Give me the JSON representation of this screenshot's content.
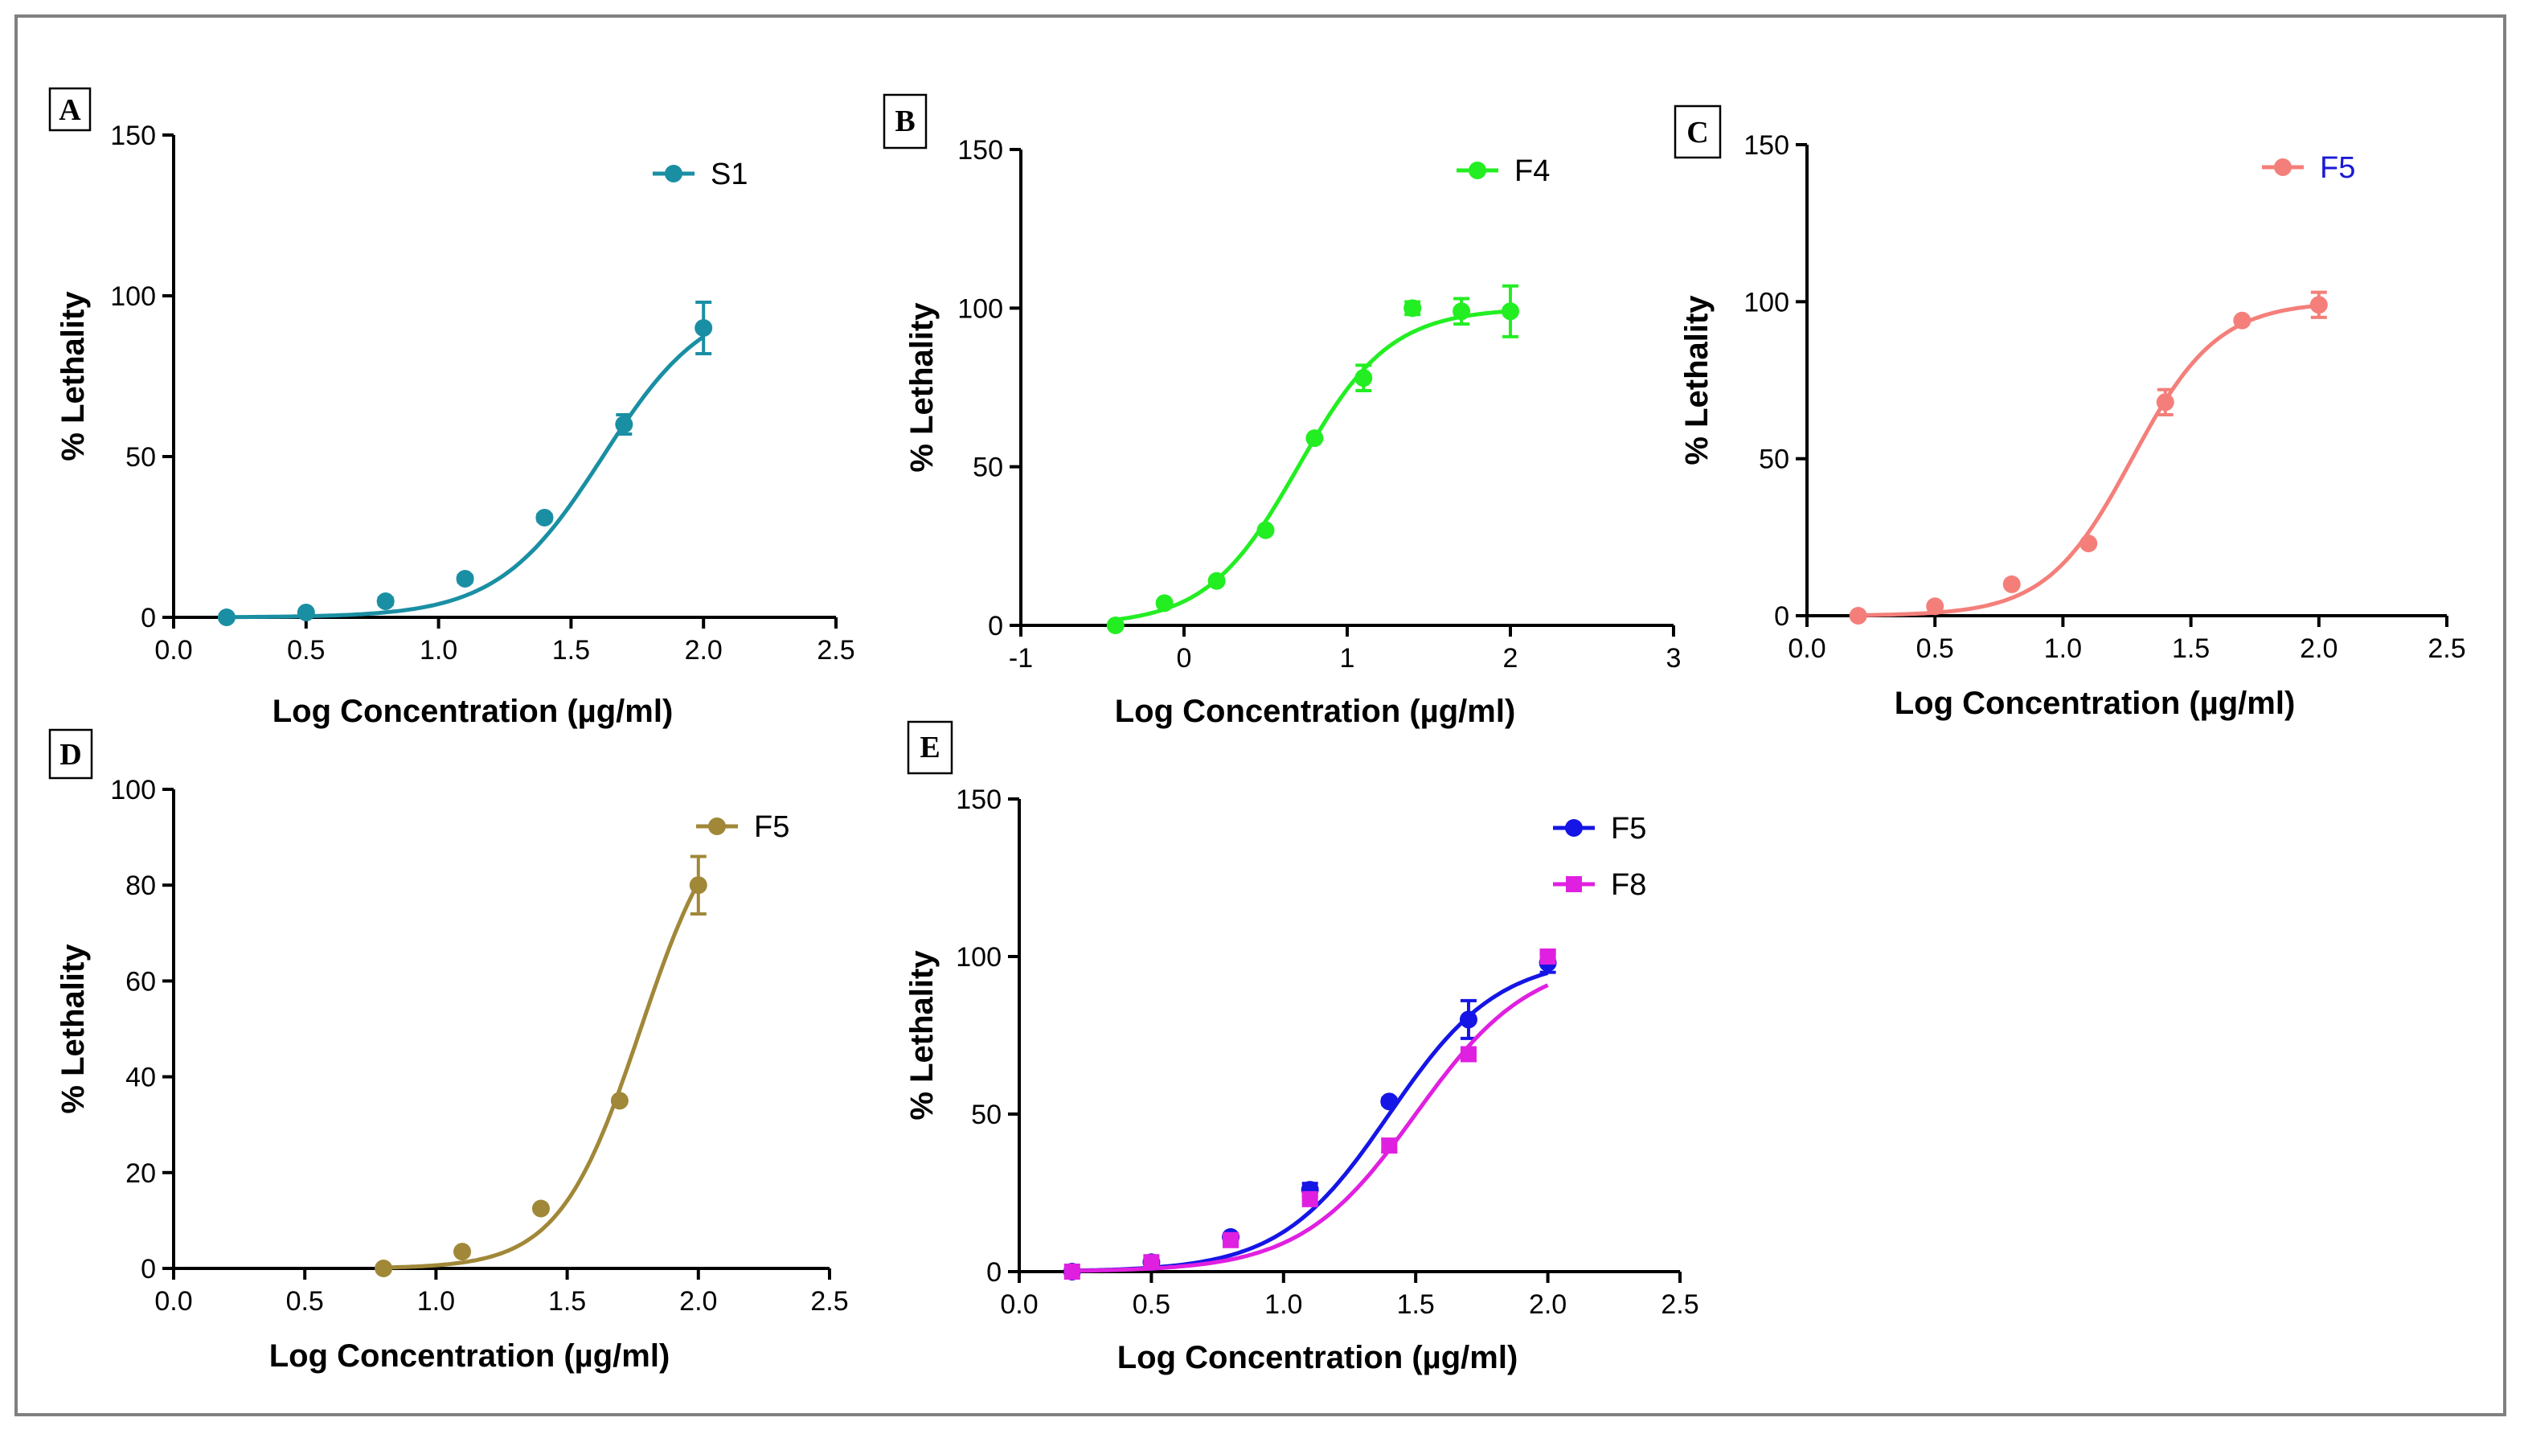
{
  "chart_data": [
    {
      "panel": "A",
      "type": "scatter",
      "panel_box_color": "#000000",
      "xlabel": "Log Concentration (µg/ml)",
      "ylabel": "% Lethality",
      "xlim": [
        0,
        2.5
      ],
      "ylim": [
        0,
        150
      ],
      "xticks": [
        0,
        0.5,
        1,
        1.5,
        2,
        2.5
      ],
      "xtick_labels": [
        "0.0",
        "0.5",
        "1.0",
        "1.5",
        "2.0",
        "2.5"
      ],
      "yticks": [
        0,
        50,
        100,
        150
      ],
      "ytick_labels": [
        "0",
        "50",
        "100",
        "150"
      ],
      "series": [
        {
          "name": "S1",
          "color": "#1a8fa3",
          "legend_color": "#000000",
          "marker": "circle",
          "x": [
            0.2,
            0.5,
            0.8,
            1.1,
            1.4,
            1.7,
            2.0
          ],
          "y": [
            0,
            1.5,
            5,
            12,
            31,
            60,
            90
          ],
          "err": [
            0,
            0,
            1,
            1,
            1,
            3,
            8
          ],
          "fit": {
            "ec50": 1.62,
            "hill": 2.2,
            "top": 100
          }
        }
      ]
    },
    {
      "panel": "B",
      "type": "scatter",
      "panel_box_color": "#6a5acd",
      "xlabel": "Log Concentration (µg/ml)",
      "ylabel": "% Lethality",
      "xlim": [
        -1,
        3
      ],
      "ylim": [
        0,
        150
      ],
      "xticks": [
        -1,
        0,
        1,
        2,
        3
      ],
      "xtick_labels": [
        "-1",
        "0",
        "1",
        "2",
        "3"
      ],
      "yticks": [
        0,
        50,
        100,
        150
      ],
      "ytick_labels": [
        "0",
        "50",
        "100",
        "150"
      ],
      "series": [
        {
          "name": "F4",
          "color": "#22ee22",
          "legend_color": "#000000",
          "marker": "circle",
          "x": [
            -0.42,
            -0.12,
            0.2,
            0.5,
            0.8,
            1.1,
            1.4,
            1.7,
            2.0
          ],
          "y": [
            0,
            7,
            14,
            30,
            59,
            78,
            100,
            99,
            99
          ],
          "err": [
            0,
            0,
            0,
            0,
            0,
            4,
            2,
            4,
            8
          ],
          "fit": {
            "ec50": 0.7,
            "hill": 1.55,
            "top": 100
          }
        }
      ]
    },
    {
      "panel": "C",
      "type": "scatter",
      "panel_box_color": "#000000",
      "xlabel": "Log Concentration (µg/ml)",
      "ylabel": "% Lethality",
      "xlim": [
        0,
        2.5
      ],
      "ylim": [
        0,
        150
      ],
      "xticks": [
        0,
        0.5,
        1,
        1.5,
        2,
        2.5
      ],
      "xtick_labels": [
        "0.0",
        "0.5",
        "1.0",
        "1.5",
        "2.0",
        "2.5"
      ],
      "yticks": [
        0,
        50,
        100,
        150
      ],
      "ytick_labels": [
        "0",
        "50",
        "100",
        "150"
      ],
      "series": [
        {
          "name": "F5",
          "color": "#f47f7a",
          "legend_color": "#1a1ad6",
          "marker": "circle",
          "x": [
            0.2,
            0.5,
            0.8,
            1.1,
            1.4,
            1.7,
            2.0
          ],
          "y": [
            0,
            3,
            10,
            23,
            68,
            94,
            99
          ],
          "err": [
            0,
            0,
            0,
            0,
            4,
            0,
            4
          ],
          "fit": {
            "ec50": 1.27,
            "hill": 2.6,
            "top": 100
          }
        }
      ]
    },
    {
      "panel": "D",
      "type": "scatter",
      "panel_box_color": "#000000",
      "xlabel": "Log Concentration (µg/ml)",
      "ylabel": "% Lethality",
      "xlim": [
        0,
        2.5
      ],
      "ylim": [
        0,
        100
      ],
      "xticks": [
        0,
        0.5,
        1,
        1.5,
        2,
        2.5
      ],
      "xtick_labels": [
        "0.0",
        "0.5",
        "1.0",
        "1.5",
        "2.0",
        "2.5"
      ],
      "yticks": [
        0,
        20,
        40,
        60,
        80,
        100
      ],
      "ytick_labels": [
        "0",
        "20",
        "40",
        "60",
        "80",
        "100"
      ],
      "series": [
        {
          "name": "F5",
          "color": "#a08838",
          "legend_color": "#000000",
          "marker": "circle",
          "x": [
            0.8,
            1.1,
            1.4,
            1.7,
            2.0
          ],
          "y": [
            0,
            3.5,
            12.5,
            35,
            80
          ],
          "err": [
            0,
            0,
            0,
            0,
            6
          ],
          "fit": {
            "ec50": 1.78,
            "hill": 2.8,
            "top": 100
          }
        }
      ]
    },
    {
      "panel": "E",
      "type": "scatter",
      "panel_box_color": "#000000",
      "xlabel": "Log Concentration (µg/ml)",
      "ylabel": "% Lethality",
      "xlim": [
        0,
        2.5
      ],
      "ylim": [
        0,
        150
      ],
      "xticks": [
        0,
        0.5,
        1,
        1.5,
        2,
        2.5
      ],
      "xtick_labels": [
        "0.0",
        "0.5",
        "1.0",
        "1.5",
        "2.0",
        "2.5"
      ],
      "yticks": [
        0,
        50,
        100,
        150
      ],
      "ytick_labels": [
        "0",
        "50",
        "100",
        "150"
      ],
      "series": [
        {
          "name": "F5",
          "color": "#1515e6",
          "legend_color": "#000000",
          "marker": "circle",
          "x": [
            0.2,
            0.5,
            0.8,
            1.1,
            1.4,
            1.7,
            2.0
          ],
          "y": [
            0,
            3,
            11,
            26,
            54,
            80,
            98
          ],
          "err": [
            0,
            0,
            1,
            2,
            1,
            6,
            3
          ],
          "fit": {
            "ec50": 1.4,
            "hill": 2.1,
            "top": 100
          }
        },
        {
          "name": "F8",
          "color": "#e020e0",
          "legend_color": "#000000",
          "marker": "square",
          "x": [
            0.2,
            0.5,
            0.8,
            1.1,
            1.4,
            1.7,
            2.0
          ],
          "y": [
            0,
            3,
            10,
            23,
            40,
            69,
            100
          ],
          "err": [
            0,
            0,
            0,
            0,
            2,
            2,
            2
          ],
          "fit": {
            "ec50": 1.5,
            "hill": 2.0,
            "top": 100
          }
        }
      ]
    }
  ]
}
